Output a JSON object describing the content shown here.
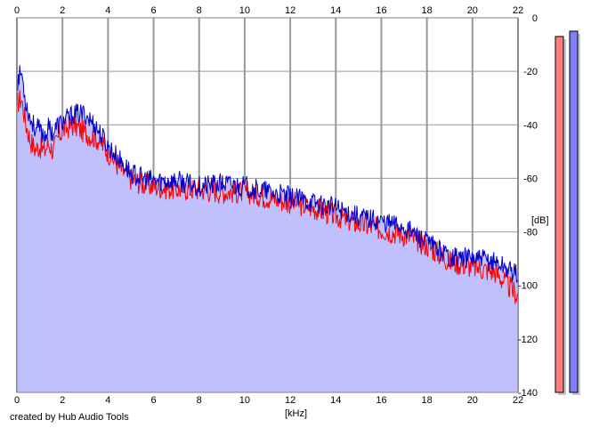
{
  "app": {
    "credit": "created by Hub Audio Tools"
  },
  "chart_data": {
    "type": "area",
    "xlabel": "[kHz]",
    "ylabel": "[dB]",
    "xlim": [
      0,
      22
    ],
    "ylim": [
      -140,
      0
    ],
    "x_ticks": [
      0,
      2,
      4,
      6,
      8,
      10,
      12,
      14,
      16,
      18,
      20,
      22
    ],
    "y_ticks": [
      0,
      -20,
      -40,
      -60,
      -80,
      -100,
      -120,
      -140
    ],
    "y_tick_labels": [
      "0",
      "-20",
      "-40",
      "-60",
      "-80",
      "-100",
      "-120",
      "-140"
    ],
    "grid": true,
    "fill_color": "#c0c0ff",
    "series": [
      {
        "color": "#ff0000",
        "x": [
          0,
          0.2,
          0.4,
          0.6,
          0.8,
          1.0,
          1.2,
          1.4,
          1.6,
          1.8,
          2.0,
          2.5,
          3.0,
          3.5,
          4.0,
          4.5,
          5.0,
          5.5,
          6.0,
          7.0,
          8.0,
          9.0,
          10.0,
          11.0,
          12.0,
          13.0,
          14.0,
          15.0,
          16.0,
          17.0,
          18.0,
          19.0,
          20.0,
          21.0,
          22.0
        ],
        "y": [
          -32,
          -30,
          -40,
          -46,
          -49,
          -48,
          -50,
          -47,
          -50,
          -45,
          -42,
          -40,
          -43,
          -45,
          -50,
          -56,
          -60,
          -62,
          -63,
          -64,
          -64,
          -65,
          -65,
          -67,
          -69,
          -71,
          -74,
          -77,
          -79,
          -81,
          -85,
          -91,
          -93,
          -95,
          -104
        ]
      },
      {
        "color": "#0000cc",
        "x": [
          0,
          0.2,
          0.4,
          0.6,
          0.8,
          1.0,
          1.2,
          1.4,
          1.6,
          1.8,
          2.0,
          2.5,
          3.0,
          3.5,
          4.0,
          4.5,
          5.0,
          5.5,
          6.0,
          7.0,
          8.0,
          9.0,
          10.0,
          11.0,
          12.0,
          13.0,
          14.0,
          15.0,
          16.0,
          17.0,
          18.0,
          19.0,
          20.0,
          21.0,
          22.0
        ],
        "y": [
          -24,
          -20,
          -32,
          -38,
          -41,
          -42,
          -44,
          -41,
          -43,
          -40,
          -39,
          -36,
          -36,
          -41,
          -48,
          -53,
          -58,
          -60,
          -61,
          -61,
          -63,
          -62,
          -63,
          -65,
          -67,
          -69,
          -71,
          -74,
          -76,
          -78,
          -84,
          -89,
          -90,
          -91,
          -96
        ]
      }
    ],
    "level_meters": [
      {
        "color": "#ff7f7f",
        "value_db": -7
      },
      {
        "color": "#8080ff",
        "value_db": -5
      }
    ]
  }
}
